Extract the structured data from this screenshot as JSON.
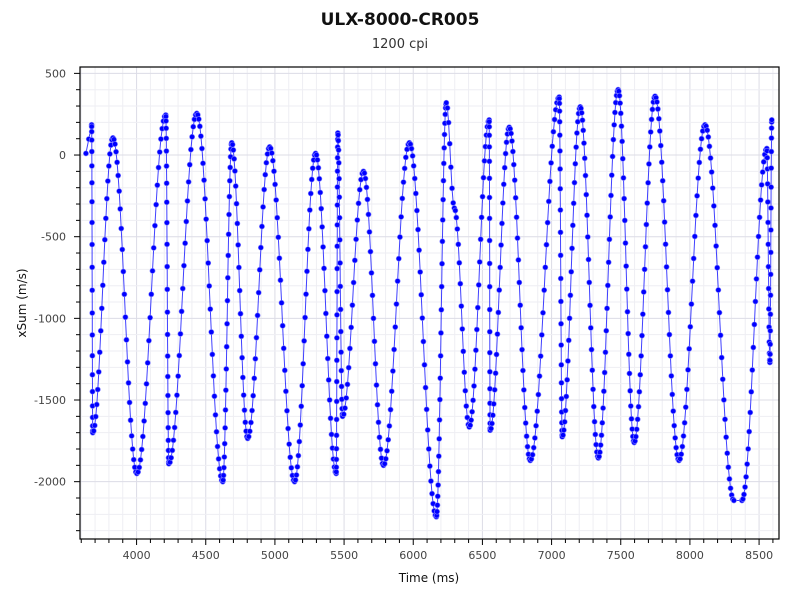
{
  "chart_data": {
    "type": "line",
    "title": "ULX-8000-CR005",
    "subtitle": "1200 cpi",
    "xlabel": "Time (ms)",
    "ylabel": "xSum (m/s)",
    "xlim": [
      3591,
      8644
    ],
    "ylim": [
      -2351,
      539
    ],
    "xticks": [
      4000,
      4500,
      5000,
      5500,
      6000,
      6500,
      7000,
      7500,
      8000,
      8500
    ],
    "yticks": [
      500,
      0,
      -500,
      -1000,
      -1500,
      -2000
    ],
    "grid": true,
    "markers": true,
    "color": "#0000ff",
    "series": [
      {
        "x": [
          3634,
          3675,
          3683,
          3829,
          4002,
          4211,
          4233,
          4435,
          4623,
          4688,
          4803,
          4962,
          5142,
          5294,
          5443,
          5455,
          5489,
          5640,
          5785,
          5972,
          6167,
          6239,
          6297,
          6405,
          6549,
          6556,
          6694,
          6846,
          7055,
          7077,
          7207,
          7338,
          7481,
          7597,
          7748,
          7921,
          8109,
          8318,
          8376,
          8556,
          8578,
          8592
        ],
        "y": [
          10,
          185,
          -1700,
          105,
          -1950,
          245,
          -1890,
          255,
          -2000,
          75,
          -1735,
          50,
          -2000,
          10,
          -1950,
          135,
          -1600,
          -100,
          -1900,
          75,
          -2215,
          320,
          -325,
          -1665,
          215,
          -1685,
          170,
          -1870,
          355,
          -1725,
          295,
          -1855,
          400,
          -1760,
          360,
          -1870,
          185,
          -2115,
          -2115,
          40,
          -1270,
          215
        ]
      }
    ]
  }
}
